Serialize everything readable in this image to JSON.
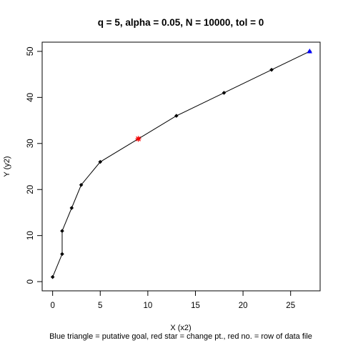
{
  "chart_data": {
    "type": "line",
    "title": "q = 5, alpha = 0.05, N = 10000, tol = 0",
    "xlabel": "X (x2)",
    "ylabel": "Y (y2)",
    "caption": "Blue triangle = putative goal, red star = change pt., red no. = row of data file",
    "xlim": [
      -1.1,
      28.1
    ],
    "ylim": [
      -2,
      52
    ],
    "xticks": [
      0,
      5,
      10,
      15,
      20,
      25
    ],
    "yticks": [
      0,
      10,
      20,
      30,
      40,
      50
    ],
    "grid": false,
    "series": [
      {
        "x": [
          0,
          1,
          1,
          2,
          3,
          5,
          9,
          13,
          18,
          23,
          27
        ],
        "y": [
          1,
          6,
          11,
          16,
          21,
          26,
          31,
          36,
          41,
          46,
          50
        ]
      }
    ],
    "change_point": {
      "x": 9,
      "y": 31
    },
    "goal": {
      "x": 27,
      "y": 50
    },
    "colors": {
      "line": "#000000",
      "points": "#000000",
      "change_point": "#ff0000",
      "goal": "#0000ff"
    }
  }
}
